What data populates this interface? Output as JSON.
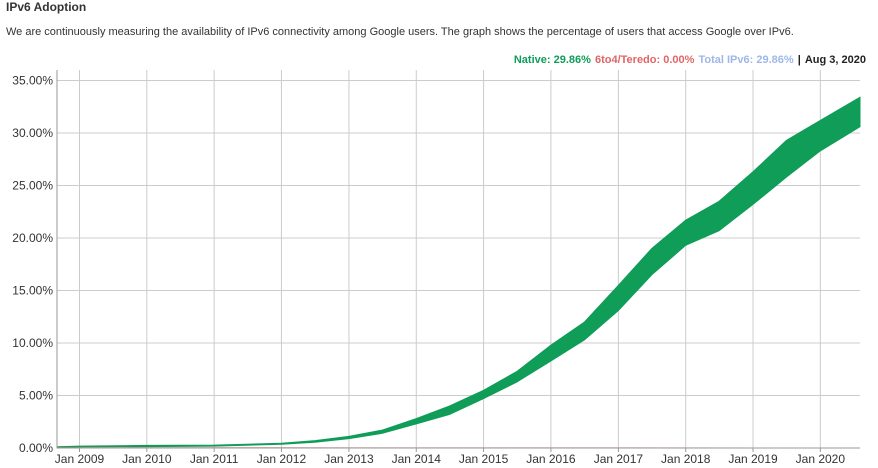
{
  "header": {
    "title": "IPv6 Adoption",
    "description": "We are continuously measuring the availability of IPv6 connectivity among Google users. The graph shows the percentage of users that access Google over IPv6."
  },
  "legend": {
    "native": "Native: 29.86%",
    "teredo": "6to4/Teredo: 0.00%",
    "total": "Total IPv6: 29.86%",
    "separator": "|",
    "date": "Aug 3, 2020"
  },
  "colors": {
    "native": "#0f9d58",
    "teredo": "#e06666",
    "total": "#9fb7e8",
    "date": "#222222",
    "grid": "#cccccc"
  },
  "chart_data": {
    "type": "area",
    "xlabel": "",
    "ylabel": "",
    "x_ticks": [
      "Jan 2009",
      "Jan 2010",
      "Jan 2011",
      "Jan 2012",
      "Jan 2013",
      "Jan 2014",
      "Jan 2015",
      "Jan 2016",
      "Jan 2017",
      "Jan 2018",
      "Jan 2019",
      "Jan 2020"
    ],
    "y_ticks": [
      "0.00%",
      "5.00%",
      "10.00%",
      "15.00%",
      "20.00%",
      "25.00%",
      "30.00%",
      "35.00%"
    ],
    "xlim": [
      "2008-09-01",
      "2020-08-03"
    ],
    "ylim": [
      0,
      36
    ],
    "grid": true,
    "legend_position": "top-right",
    "series": [
      {
        "name": "Native",
        "x": [
          "2008-09-01",
          "2009-01-01",
          "2010-01-01",
          "2011-01-01",
          "2012-01-01",
          "2012-07-01",
          "2013-01-01",
          "2013-07-01",
          "2014-01-01",
          "2014-07-01",
          "2015-01-01",
          "2015-07-01",
          "2016-01-01",
          "2016-07-01",
          "2017-01-01",
          "2017-07-01",
          "2018-01-01",
          "2018-07-01",
          "2019-01-01",
          "2019-07-01",
          "2020-01-01",
          "2020-08-03"
        ],
        "low": [
          0.05,
          0.1,
          0.13,
          0.18,
          0.35,
          0.55,
          0.9,
          1.4,
          2.3,
          3.2,
          4.7,
          6.3,
          8.3,
          10.3,
          13.1,
          16.5,
          19.3,
          20.7,
          23.2,
          25.8,
          28.3,
          30.6
        ],
        "high": [
          0.12,
          0.18,
          0.25,
          0.28,
          0.45,
          0.7,
          1.1,
          1.7,
          2.8,
          4.0,
          5.5,
          7.3,
          9.8,
          12.0,
          15.5,
          19.0,
          21.7,
          23.5,
          26.3,
          29.3,
          31.2,
          33.4
        ]
      },
      {
        "name": "6to4/Teredo",
        "x": [
          "2008-09-01",
          "2020-08-03"
        ],
        "low": [
          0.0,
          0.0
        ],
        "high": [
          0.03,
          0.0
        ]
      }
    ]
  }
}
